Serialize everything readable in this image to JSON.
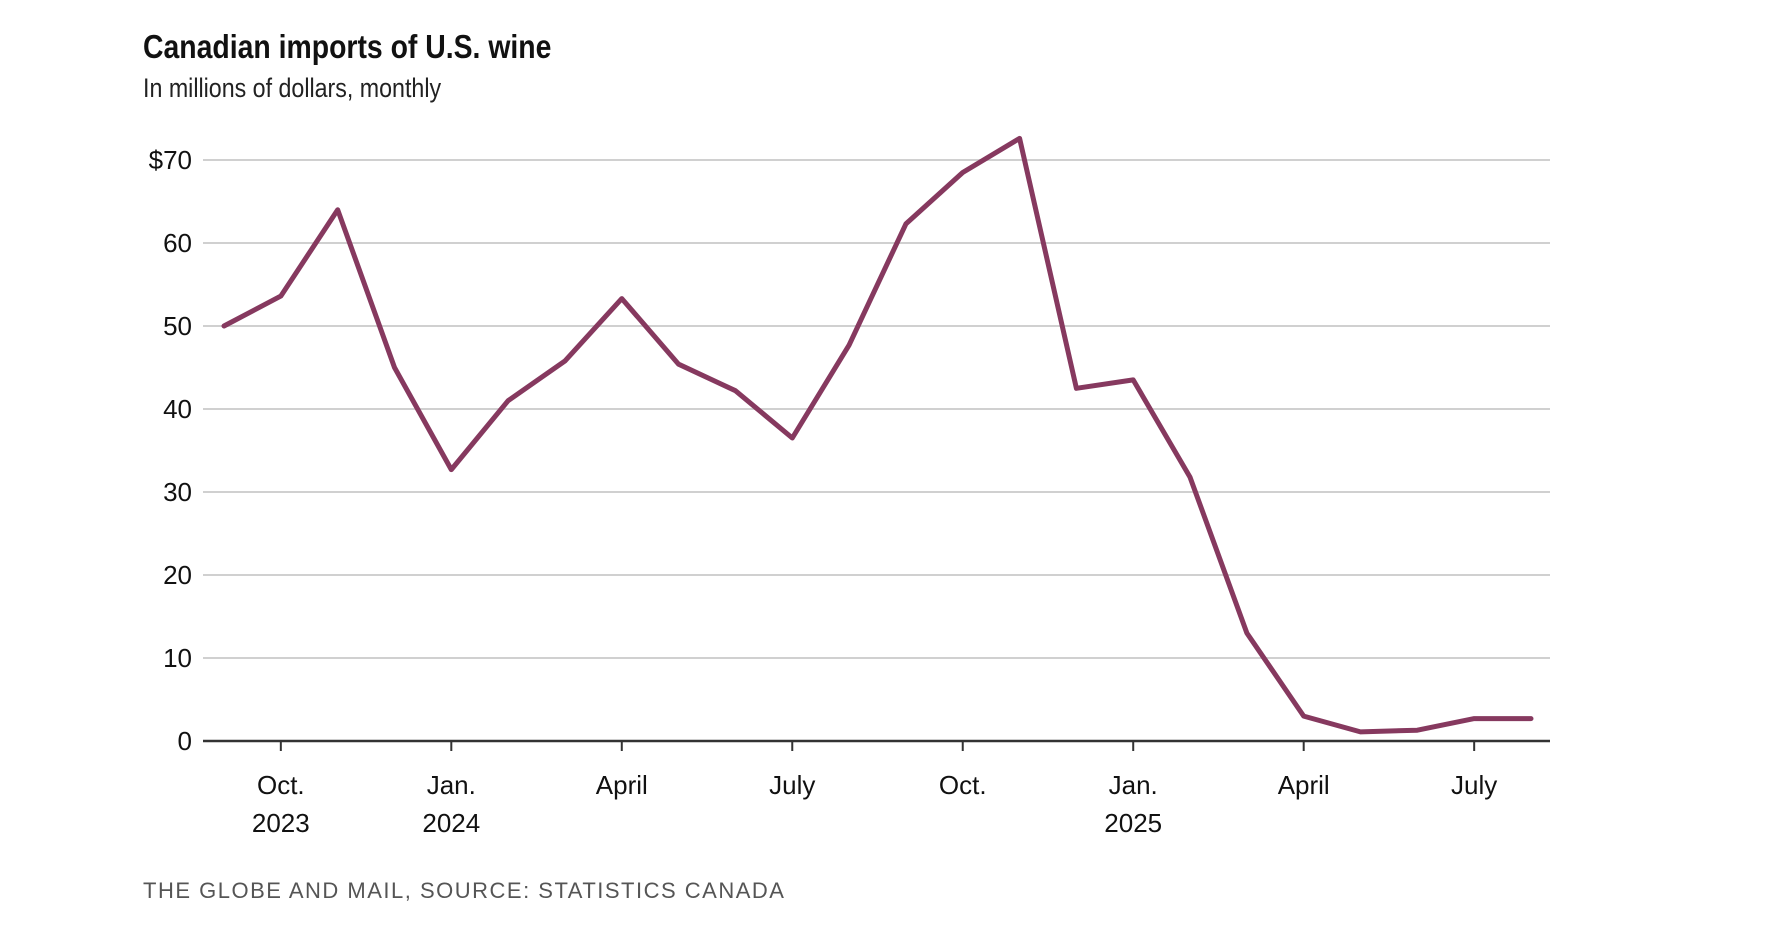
{
  "chart_data": {
    "type": "line",
    "title": "Canadian imports of U.S. wine",
    "subtitle": "In millions of dollars, monthly",
    "source": "THE GLOBE AND MAIL, SOURCE: STATISTICS CANADA",
    "xlabel": "",
    "ylabel": "",
    "ylim": [
      0,
      70
    ],
    "grid": true,
    "line_color": "#86395f",
    "y_ticks": [
      {
        "value": 0,
        "label": "0"
      },
      {
        "value": 10,
        "label": "10"
      },
      {
        "value": 20,
        "label": "20"
      },
      {
        "value": 30,
        "label": "30"
      },
      {
        "value": 40,
        "label": "40"
      },
      {
        "value": 50,
        "label": "50"
      },
      {
        "value": 60,
        "label": "60"
      },
      {
        "value": 70,
        "label": "$70"
      }
    ],
    "x_ticks": [
      {
        "index": 1,
        "label": "Oct.",
        "sublabel": "2023"
      },
      {
        "index": 4,
        "label": "Jan.",
        "sublabel": "2024"
      },
      {
        "index": 7,
        "label": "April",
        "sublabel": ""
      },
      {
        "index": 10,
        "label": "July",
        "sublabel": ""
      },
      {
        "index": 13,
        "label": "Oct.",
        "sublabel": ""
      },
      {
        "index": 16,
        "label": "Jan.",
        "sublabel": "2025"
      },
      {
        "index": 19,
        "label": "April",
        "sublabel": ""
      },
      {
        "index": 22,
        "label": "July",
        "sublabel": ""
      }
    ],
    "x": [
      "2023-09",
      "2023-10",
      "2023-11",
      "2023-12",
      "2024-01",
      "2024-02",
      "2024-03",
      "2024-04",
      "2024-05",
      "2024-06",
      "2024-07",
      "2024-08",
      "2024-09",
      "2024-10",
      "2024-11",
      "2024-12",
      "2025-01",
      "2025-02",
      "2025-03",
      "2025-04",
      "2025-05",
      "2025-06",
      "2025-07",
      "2025-08"
    ],
    "series": [
      {
        "name": "Canadian imports of U.S. wine",
        "values": [
          50,
          53.6,
          64,
          45,
          32.7,
          41,
          45.8,
          53.3,
          45.4,
          42.2,
          36.5,
          47.7,
          62.3,
          68.5,
          72.6,
          42.5,
          43.5,
          31.8,
          13,
          3,
          1.1,
          1.3,
          2.7,
          2.7
        ]
      }
    ]
  }
}
